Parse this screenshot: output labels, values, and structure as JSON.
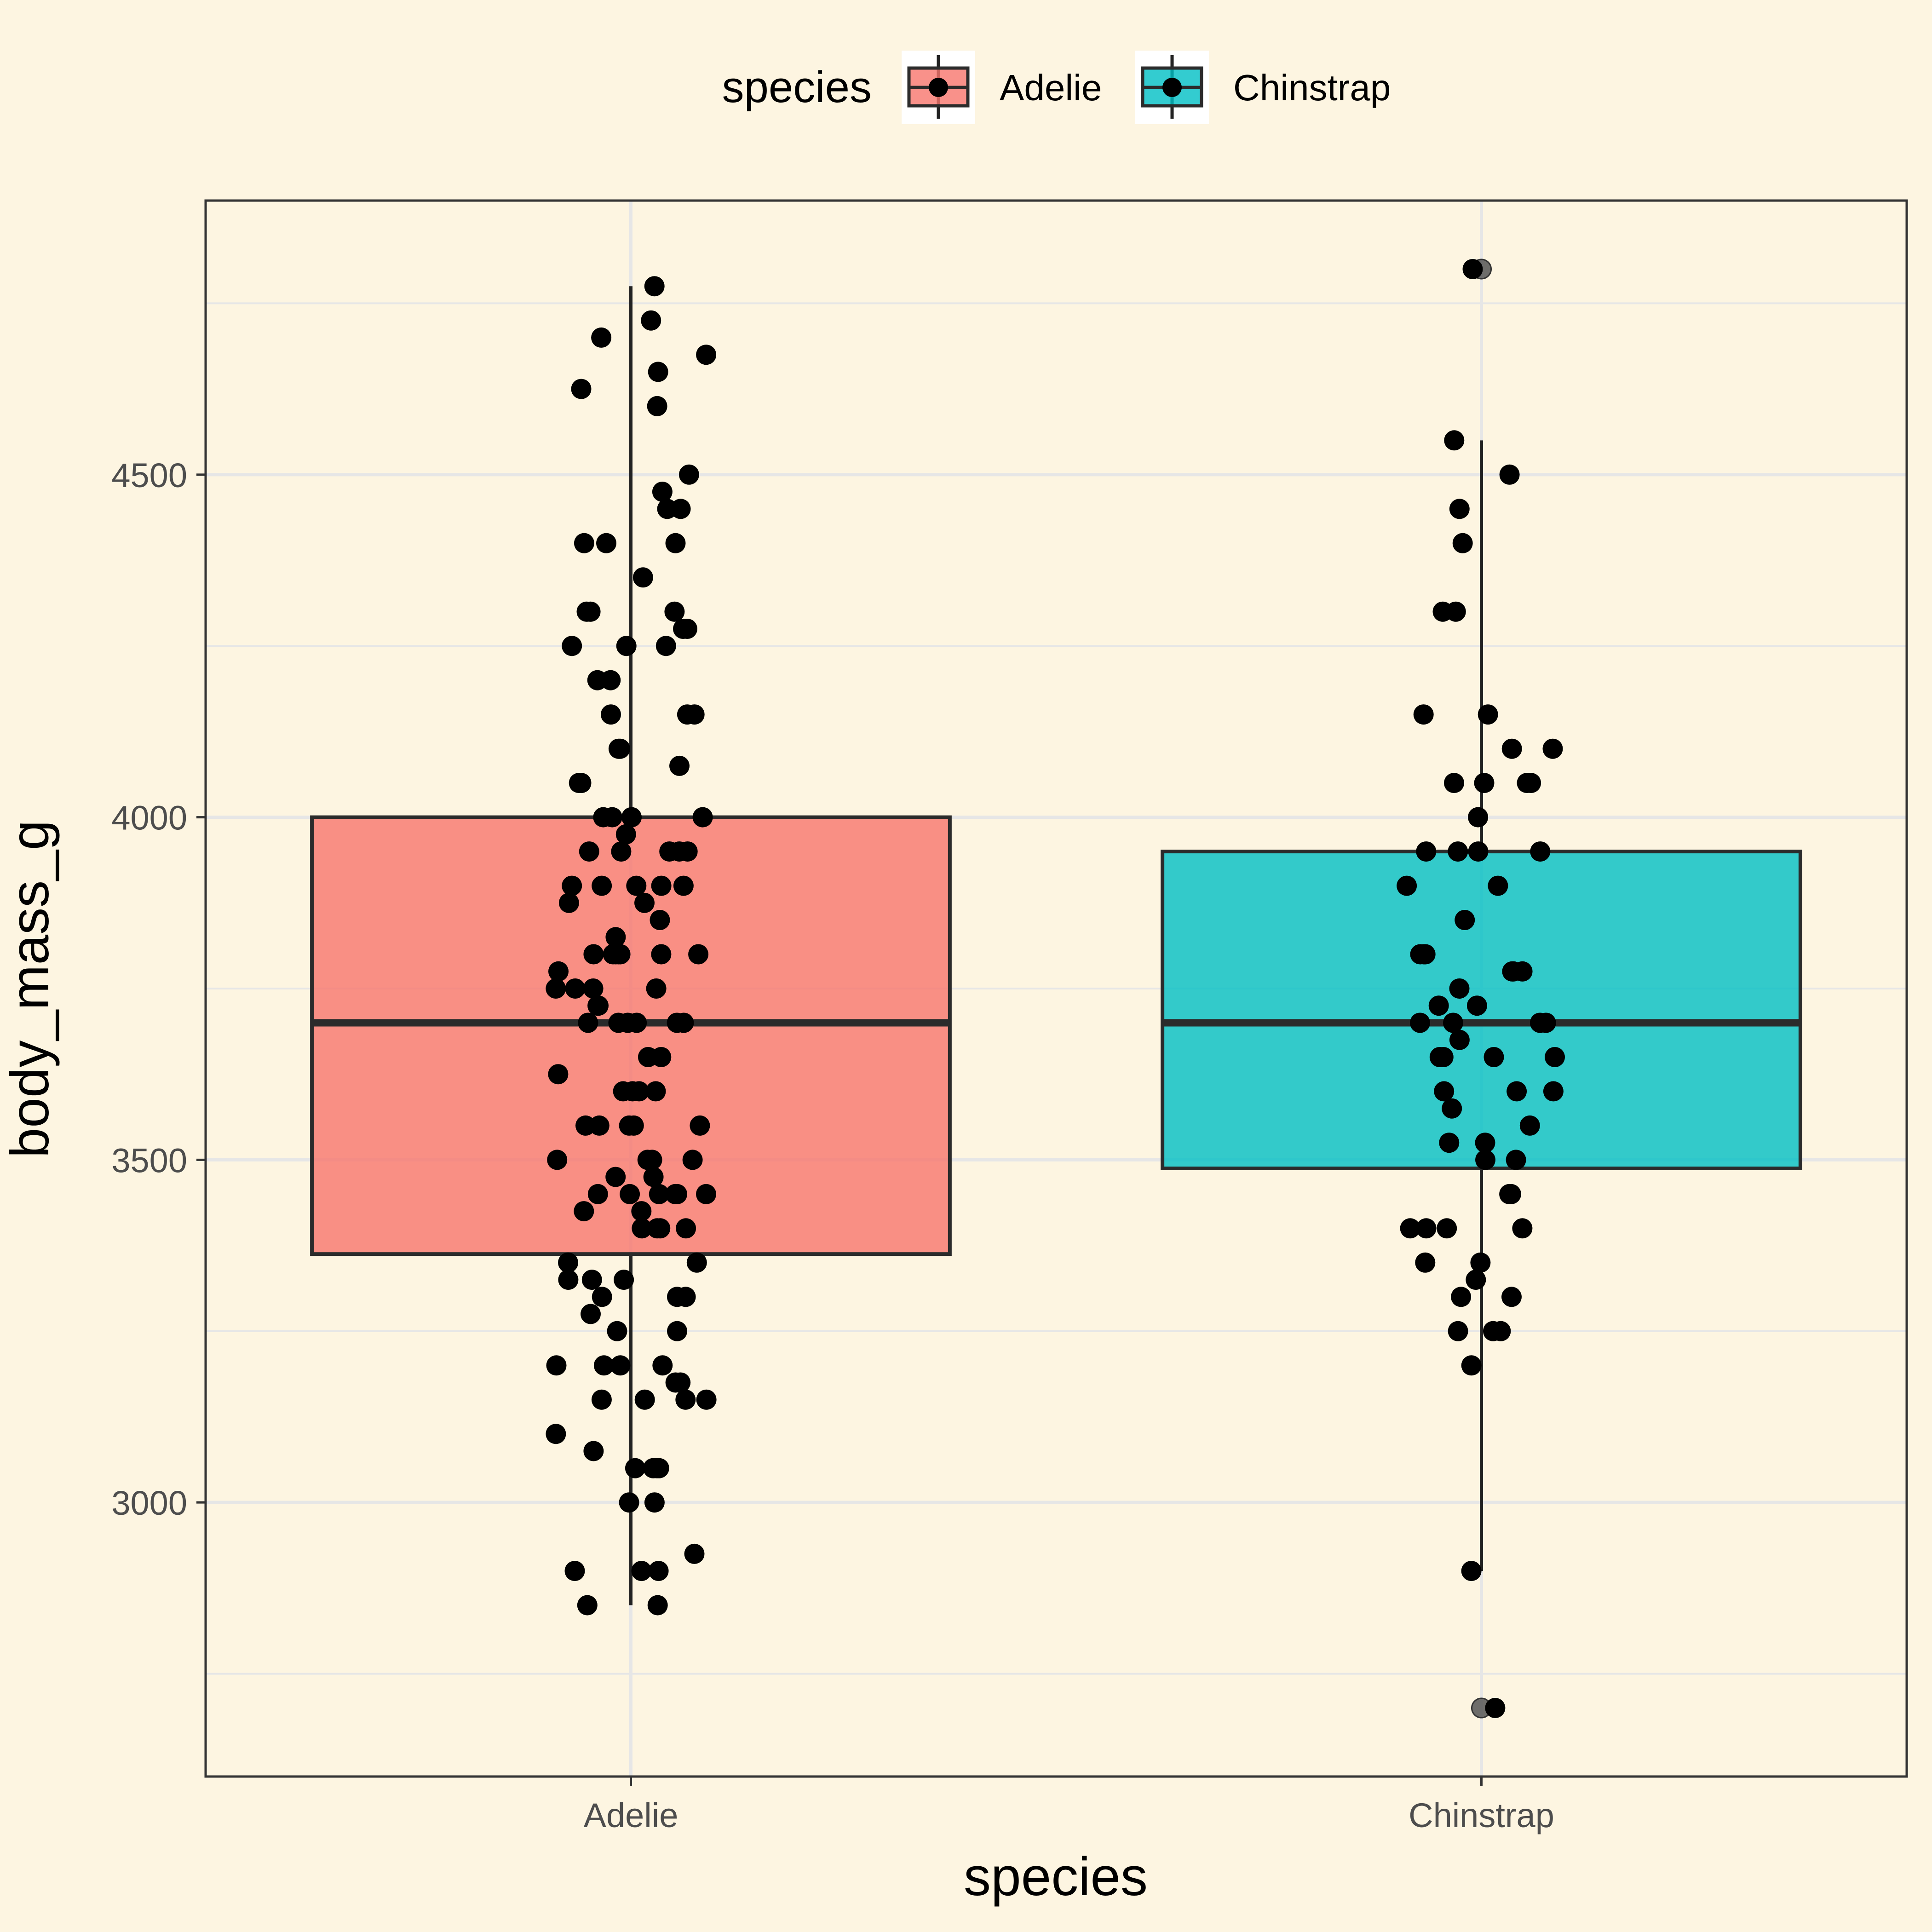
{
  "chart_data": {
    "type": "box",
    "title": "",
    "xlabel": "species",
    "ylabel": "body_mass_g",
    "ylim": [
      2600,
      4900
    ],
    "y_ticks": [
      3000,
      3500,
      4000,
      4500
    ],
    "y_minor_ticks": [
      2750,
      3250,
      3750,
      4250,
      4750
    ],
    "grid": true,
    "legend": {
      "title": "species",
      "position": "top",
      "entries": [
        "Adelie",
        "Chinstrap"
      ]
    },
    "colors": {
      "Adelie": "#f8766d",
      "Chinstrap": "#00bfc4",
      "background": "#fdf5e1",
      "points": "#000000"
    },
    "series": [
      {
        "name": "Adelie",
        "box": {
          "q1": 3362.5,
          "median": 3700,
          "q3": 4000,
          "whisker_low": 2850,
          "whisker_high": 4775
        },
        "outliers": [],
        "points": [
          4775,
          4700,
          4725,
          4675,
          4650,
          4600,
          4625,
          4500,
          4475,
          4450,
          4450,
          4400,
          4400,
          4400,
          4350,
          4300,
          4300,
          4300,
          4275,
          4275,
          4250,
          4250,
          4250,
          4200,
          4200,
          4150,
          4150,
          4150,
          4100,
          4100,
          4075,
          4050,
          4050,
          4000,
          4000,
          4000,
          4000,
          3975,
          3950,
          3950,
          3950,
          3950,
          3950,
          3900,
          3900,
          3900,
          3900,
          3900,
          3875,
          3875,
          3850,
          3825,
          3800,
          3800,
          3800,
          3800,
          3800,
          3800,
          3800,
          3775,
          3750,
          3750,
          3750,
          3750,
          3725,
          3725,
          3700,
          3700,
          3700,
          3700,
          3700,
          3700,
          3650,
          3650,
          3625,
          3600,
          3600,
          3600,
          3600,
          3550,
          3550,
          3550,
          3550,
          3550,
          3500,
          3500,
          3500,
          3500,
          3475,
          3475,
          3450,
          3450,
          3450,
          3450,
          3450,
          3450,
          3425,
          3425,
          3400,
          3400,
          3400,
          3400,
          3350,
          3350,
          3325,
          3325,
          3325,
          3300,
          3300,
          3300,
          3275,
          3250,
          3250,
          3200,
          3200,
          3200,
          3200,
          3175,
          3175,
          3150,
          3150,
          3150,
          3150,
          3100,
          3075,
          3050,
          3050,
          3050,
          3050,
          3000,
          3000,
          2925,
          2900,
          2900,
          2900,
          2850,
          2850
        ]
      },
      {
        "name": "Chinstrap",
        "box": {
          "q1": 3487.5,
          "median": 3700,
          "q3": 3950,
          "whisker_low": 2900,
          "whisker_high": 4550
        },
        "outliers": [
          4800,
          2700
        ],
        "points": [
          4800,
          4550,
          4500,
          4450,
          4400,
          4300,
          4300,
          4150,
          4150,
          4100,
          4100,
          4050,
          4050,
          4050,
          4050,
          4000,
          3950,
          3950,
          3950,
          3950,
          3900,
          3900,
          3850,
          3800,
          3800,
          3800,
          3800,
          3775,
          3775,
          3775,
          3750,
          3725,
          3725,
          3700,
          3700,
          3700,
          3700,
          3675,
          3650,
          3650,
          3650,
          3650,
          3600,
          3600,
          3600,
          3575,
          3550,
          3525,
          3525,
          3500,
          3500,
          3450,
          3450,
          3400,
          3400,
          3400,
          3400,
          3350,
          3350,
          3325,
          3300,
          3300,
          3250,
          3250,
          3250,
          3200,
          2900,
          2700
        ]
      }
    ]
  }
}
